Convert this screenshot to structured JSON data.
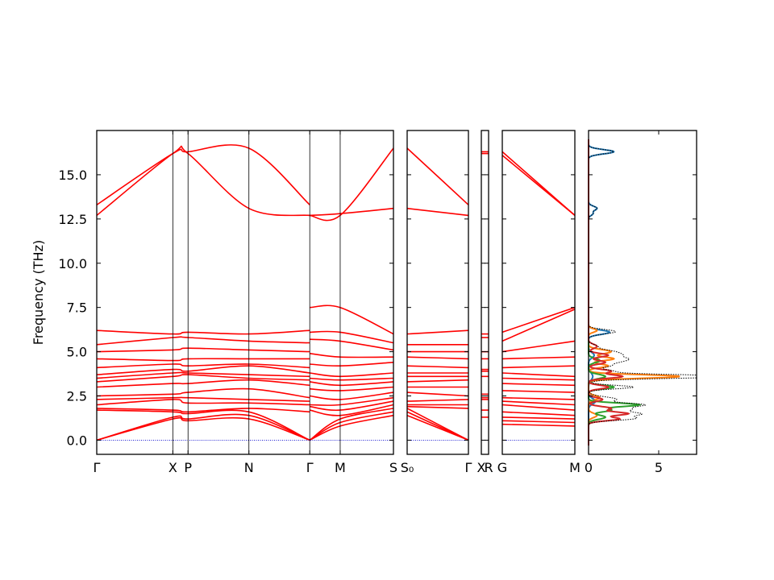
{
  "chart_data": {
    "type": "line",
    "ylabel": "Frequency (THz)",
    "ylim": [
      -0.8,
      17.5
    ],
    "y_ticks": [
      "0.0",
      "2.5",
      "5.0",
      "7.5",
      "10.0",
      "12.5",
      "15.0"
    ],
    "band_color": "#ff0000",
    "zero_line_color": "#0000cc",
    "band_panels": [
      {
        "x_labels": [
          {
            "pos": 0.0,
            "label": "Γ"
          },
          {
            "pos": 1.0,
            "label": "X"
          },
          {
            "pos": 1.2,
            "label": "P"
          },
          {
            "pos": 2.0,
            "label": "N"
          },
          {
            "pos": 2.8,
            "label": "Γ"
          },
          {
            "pos": 3.2,
            "label": "M"
          },
          {
            "pos": 3.9,
            "label": "S"
          }
        ],
        "segments": [
          {
            "x": [
              0,
              1.0,
              1.2,
              2.0,
              2.8
            ],
            "bands": [
              [
                13.3,
                16.2,
                16.3,
                16.5,
                13.3
              ],
              [
                12.7,
                16.2,
                16.2,
                13.1,
                12.7
              ],
              [
                6.2,
                6.0,
                6.1,
                6.0,
                6.2
              ],
              [
                5.4,
                5.8,
                5.8,
                5.6,
                5.5
              ],
              [
                5.0,
                5.1,
                5.2,
                5.1,
                5.0
              ],
              [
                4.6,
                4.5,
                4.6,
                4.6,
                4.6
              ],
              [
                4.1,
                4.3,
                4.2,
                4.3,
                4.1
              ],
              [
                3.7,
                4.0,
                3.9,
                4.2,
                3.8
              ],
              [
                3.5,
                3.8,
                3.8,
                3.7,
                3.6
              ],
              [
                3.3,
                3.6,
                3.7,
                3.5,
                3.4
              ],
              [
                3.0,
                3.2,
                3.2,
                3.4,
                3.1
              ],
              [
                2.5,
                2.6,
                2.7,
                2.9,
                2.4
              ],
              [
                2.3,
                2.4,
                2.4,
                2.3,
                2.2
              ],
              [
                2.0,
                2.3,
                2.1,
                2.1,
                2.0
              ],
              [
                1.8,
                1.7,
                1.6,
                1.8,
                1.6
              ],
              [
                1.7,
                1.6,
                1.5,
                1.6,
                0.0
              ],
              [
                0.0,
                1.3,
                1.2,
                1.4,
                0.0
              ],
              [
                0.0,
                1.2,
                1.1,
                1.2,
                0.0
              ]
            ]
          },
          {
            "x": [
              2.8,
              3.2,
              3.9
            ],
            "bands": [
              [
                12.7,
                12.7,
                16.5
              ],
              [
                12.7,
                12.8,
                13.1
              ],
              [
                7.5,
                7.5,
                6.0
              ],
              [
                6.1,
                6.1,
                5.5
              ],
              [
                5.7,
                5.6,
                5.1
              ],
              [
                4.9,
                4.7,
                4.7
              ],
              [
                4.3,
                4.2,
                4.4
              ],
              [
                3.8,
                3.6,
                3.8
              ],
              [
                3.5,
                3.4,
                3.5
              ],
              [
                3.3,
                3.1,
                3.3
              ],
              [
                2.9,
                2.8,
                3.0
              ],
              [
                2.5,
                2.3,
                2.7
              ],
              [
                2.0,
                2.0,
                2.4
              ],
              [
                1.9,
                1.7,
                2.2
              ],
              [
                1.7,
                1.4,
                2.0
              ],
              [
                0.0,
                1.2,
                1.8
              ],
              [
                0.0,
                1.0,
                1.6
              ],
              [
                0.0,
                0.8,
                1.4
              ]
            ]
          }
        ]
      },
      {
        "x_labels": [
          {
            "pos": 0.0,
            "label": "S₀"
          },
          {
            "pos": 1.0,
            "label": "Γ"
          }
        ],
        "segments": [
          {
            "x": [
              0,
              1.0
            ],
            "bands": [
              [
                16.5,
                13.3
              ],
              [
                13.1,
                12.7
              ],
              [
                6.0,
                6.2
              ],
              [
                5.4,
                5.4
              ],
              [
                5.0,
                5.0
              ],
              [
                4.7,
                4.6
              ],
              [
                4.2,
                4.1
              ],
              [
                3.8,
                3.8
              ],
              [
                3.6,
                3.6
              ],
              [
                3.3,
                3.4
              ],
              [
                3.0,
                3.0
              ],
              [
                2.7,
                2.5
              ],
              [
                2.2,
                2.3
              ],
              [
                2.0,
                2.0
              ],
              [
                1.9,
                1.8
              ],
              [
                1.8,
                0.0
              ],
              [
                1.6,
                0.0
              ],
              [
                1.4,
                0.0
              ]
            ]
          }
        ]
      },
      {
        "x_labels": [
          {
            "pos": 0.0,
            "label": "X"
          },
          {
            "pos": 1.0,
            "label": "R"
          }
        ],
        "segments": [
          {
            "x": [
              0,
              1.0
            ],
            "bands": [
              [
                16.3,
                16.3
              ],
              [
                16.2,
                16.2
              ],
              [
                6.0,
                6.0
              ],
              [
                5.8,
                5.8
              ],
              [
                5.0,
                5.0
              ],
              [
                4.6,
                4.6
              ],
              [
                4.0,
                4.0
              ],
              [
                3.9,
                3.9
              ],
              [
                3.6,
                3.6
              ],
              [
                2.6,
                2.6
              ],
              [
                2.4,
                2.4
              ],
              [
                2.3,
                2.3
              ],
              [
                1.7,
                1.7
              ],
              [
                1.3,
                1.3
              ]
            ]
          }
        ]
      },
      {
        "x_labels": [
          {
            "pos": 0.0,
            "label": "G"
          },
          {
            "pos": 1.0,
            "label": "M"
          }
        ],
        "segments": [
          {
            "x": [
              0,
              1.0
            ],
            "bands": [
              [
                16.3,
                12.7
              ],
              [
                16.1,
                12.7
              ],
              [
                6.1,
                7.5
              ],
              [
                5.6,
                7.4
              ],
              [
                5.0,
                5.6
              ],
              [
                4.6,
                4.7
              ],
              [
                4.1,
                4.2
              ],
              [
                3.8,
                3.6
              ],
              [
                3.5,
                3.4
              ],
              [
                3.2,
                3.1
              ],
              [
                2.8,
                2.7
              ],
              [
                2.4,
                2.3
              ],
              [
                2.2,
                2.0
              ],
              [
                2.0,
                1.7
              ],
              [
                1.6,
                1.4
              ],
              [
                1.3,
                1.2
              ],
              [
                1.1,
                1.0
              ],
              [
                0.9,
                0.8
              ]
            ]
          }
        ]
      }
    ],
    "dos_panel": {
      "xlim": [
        0,
        7.7
      ],
      "x_ticks": [
        "0",
        "5"
      ],
      "total_color": "#000000",
      "partials": [
        {
          "color": "#1f77b4",
          "peaks": [
            [
              16.3,
              1.8,
              0.12
            ],
            [
              13.1,
              0.6,
              0.12
            ],
            [
              12.8,
              0.3,
              0.1
            ],
            [
              6.1,
              1.5,
              0.12
            ],
            [
              4.8,
              0.4,
              0.15
            ],
            [
              3.6,
              0.3,
              0.2
            ],
            [
              2.2,
              0.5,
              0.15
            ]
          ]
        },
        {
          "color": "#ff7f0e",
          "peaks": [
            [
              6.2,
              0.6,
              0.1
            ],
            [
              5.0,
              1.6,
              0.12
            ],
            [
              4.6,
              1.8,
              0.1
            ],
            [
              4.2,
              1.4,
              0.1
            ],
            [
              3.6,
              6.5,
              0.1
            ],
            [
              2.4,
              0.8,
              0.12
            ],
            [
              1.4,
              0.6,
              0.12
            ]
          ]
        },
        {
          "color": "#2ca02c",
          "peaks": [
            [
              4.5,
              0.8,
              0.12
            ],
            [
              3.6,
              1.2,
              0.12
            ],
            [
              3.0,
              1.8,
              0.1
            ],
            [
              2.0,
              3.6,
              0.1
            ],
            [
              1.7,
              1.6,
              0.1
            ],
            [
              1.3,
              1.2,
              0.12
            ]
          ]
        },
        {
          "color": "#d62728",
          "peaks": [
            [
              5.3,
              0.6,
              0.12
            ],
            [
              4.8,
              1.4,
              0.1
            ],
            [
              4.4,
              1.2,
              0.1
            ],
            [
              3.9,
              1.6,
              0.1
            ],
            [
              3.6,
              2.4,
              0.1
            ],
            [
              3.0,
              1.4,
              0.1
            ],
            [
              2.3,
              1.0,
              0.1
            ],
            [
              1.8,
              1.6,
              0.1
            ],
            [
              1.5,
              2.8,
              0.1
            ],
            [
              1.2,
              2.2,
              0.1
            ]
          ]
        }
      ]
    }
  }
}
